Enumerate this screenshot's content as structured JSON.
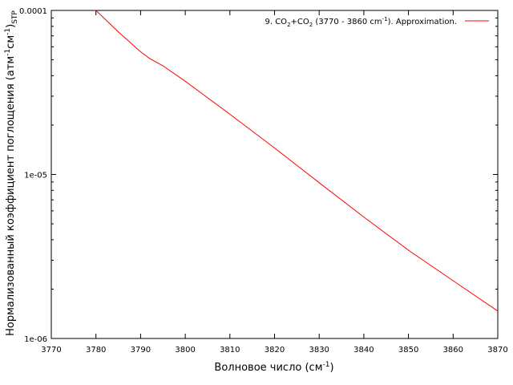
{
  "chart_data": {
    "type": "line",
    "title": "",
    "xlabel": "Волновое число (см",
    "xlabel_sup": "-1",
    "xlabel_close": ")",
    "ylabel": "Нормализованный коэффициент поглощения (атм",
    "ylabel_sup1": "-1",
    "ylabel_mid": "см",
    "ylabel_sup2": "-1",
    "ylabel_close": ")",
    "ylabel_sub": "STP",
    "xlim": [
      3770,
      3870
    ],
    "ylim": [
      1e-06,
      0.0001
    ],
    "yscale": "log",
    "xticks": [
      3770,
      3780,
      3790,
      3800,
      3810,
      3820,
      3830,
      3840,
      3850,
      3860,
      3870
    ],
    "xtick_labels": [
      "3770",
      "3780",
      "3790",
      "3800",
      "3810",
      "3820",
      "3830",
      "3840",
      "3850",
      "3860",
      "3870"
    ],
    "yticks": [
      1e-06,
      1e-05,
      0.0001
    ],
    "ytick_labels": [
      "1e-06",
      "1e-05",
      "0.0001"
    ],
    "grid": false,
    "legend_position": "top-right",
    "series": [
      {
        "name": "9. CO2+CO2 (3770 - 3860 cm-1). Approximation.",
        "color": "#ff0000",
        "x": [
          3780,
          3785,
          3790,
          3792,
          3795,
          3800,
          3810,
          3820,
          3830,
          3840,
          3850,
          3860,
          3870
        ],
        "y": [
          0.0001,
          7.4e-05,
          5.6e-05,
          5.1e-05,
          4.6e-05,
          3.7e-05,
          2.33e-05,
          1.45e-05,
          8.9e-06,
          5.5e-06,
          3.45e-06,
          2.25e-06,
          1.47e-06
        ]
      }
    ]
  },
  "legend": {
    "prefix": "9. CO",
    "sub1": "2",
    "plus": "+CO",
    "sub2": "2",
    "range": " (3770 - 3860 cm",
    "sup": "-1",
    "suffix": "). Approximation."
  }
}
